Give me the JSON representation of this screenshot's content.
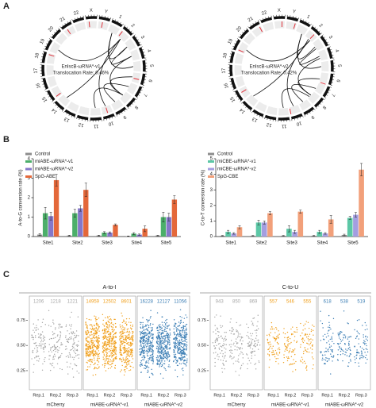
{
  "panel_labels": [
    "A",
    "B",
    "C"
  ],
  "circos": {
    "chromosomes": [
      "X",
      "Y",
      "1",
      "2",
      "3",
      "4",
      "5",
      "6",
      "7",
      "8",
      "9",
      "10",
      "11",
      "12",
      "13",
      "14",
      "15",
      "16",
      "17",
      "18",
      "19",
      "20",
      "21",
      "22"
    ],
    "plots": [
      {
        "annotation": "EnIscB-ωRNA*-v1",
        "rate": "Translocation Rate: 0.46%"
      },
      {
        "annotation": "EnIscB-ωRNA*-v2",
        "rate": "Translocation Rate: 0.42%"
      }
    ]
  },
  "chart_data": [
    {
      "type": "bar",
      "ylabel": "A-to-G conversion rate (%)",
      "categories": [
        "Site1",
        "Site2",
        "Site3",
        "Site4",
        "Site5"
      ],
      "ylim": [
        0,
        4
      ],
      "yticks": [
        0,
        1,
        2,
        3,
        4
      ],
      "series": [
        {
          "name": "Control",
          "color": "#8c8c8c",
          "values": [
            0.1,
            0.05,
            0.05,
            0.02,
            0.05
          ],
          "errors": [
            0.05,
            0.02,
            0.02,
            0.01,
            0.02
          ]
        },
        {
          "name": "miABE-ωRNA*-v1",
          "color": "#4caf6a",
          "values": [
            1.2,
            1.2,
            0.2,
            0.15,
            1.0
          ],
          "errors": [
            0.3,
            0.2,
            0.05,
            0.05,
            0.25
          ]
        },
        {
          "name": "miABE-ωRNA*-v2",
          "color": "#8577c9",
          "values": [
            1.05,
            1.45,
            0.2,
            0.1,
            1.0
          ],
          "errors": [
            0.2,
            0.15,
            0.04,
            0.03,
            0.2
          ]
        },
        {
          "name": "SpG-ABE",
          "color": "#e4683a",
          "values": [
            2.9,
            2.4,
            0.6,
            0.4,
            1.9
          ],
          "errors": [
            0.3,
            0.35,
            0.05,
            0.15,
            0.2
          ]
        }
      ]
    },
    {
      "type": "bar",
      "ylabel": "C-to-T conversion rate (%)",
      "categories": [
        "Site1",
        "Site2",
        "Site3",
        "Site4",
        "Site5"
      ],
      "ylim": [
        0,
        5
      ],
      "yticks": [
        0,
        1,
        2,
        3,
        4,
        5
      ],
      "series": [
        {
          "name": "Control",
          "color": "#8c8c8c",
          "values": [
            0.05,
            0.05,
            0.05,
            0.05,
            0.1
          ],
          "errors": [
            0.02,
            0.02,
            0.02,
            0.02,
            0.05
          ]
        },
        {
          "name": "miCBE-ωRNA*-v1",
          "color": "#5cc7a6",
          "values": [
            0.3,
            0.9,
            0.5,
            0.3,
            1.2
          ],
          "errors": [
            0.1,
            0.15,
            0.2,
            0.1,
            0.1
          ]
        },
        {
          "name": "miCBE-ωRNA*-v2",
          "color": "#a49ee0",
          "values": [
            0.2,
            0.9,
            0.3,
            0.2,
            1.4
          ],
          "errors": [
            0.05,
            0.1,
            0.1,
            0.05,
            0.15
          ]
        },
        {
          "name": "SpG-CBE",
          "color": "#f2a07a",
          "values": [
            0.6,
            1.5,
            1.6,
            1.1,
            4.3
          ],
          "errors": [
            0.1,
            0.1,
            0.1,
            0.25,
            0.4
          ]
        }
      ]
    },
    {
      "type": "strip",
      "title": "A-to-I",
      "ylim": [
        0.1,
        0.95
      ],
      "yticks": [
        {
          "value": 0.25,
          "label": "0.25"
        },
        {
          "value": 0.5,
          "label": "0.50"
        },
        {
          "value": 0.75,
          "label": "0.75"
        }
      ],
      "groups": [
        {
          "name": "mCherry",
          "color": "#a6a6a6",
          "reps": [
            "Rep.1",
            "Rep.2",
            "Rep.3"
          ],
          "counts": [
            1206,
            1218,
            1221
          ]
        },
        {
          "name": "miABE-ωRNA*-v1",
          "color": "#f0a01e",
          "reps": [
            "Rep.1",
            "Rep.2",
            "Rep.3"
          ],
          "counts": [
            14959,
            12502,
            8601
          ]
        },
        {
          "name": "miABE-ωRNA*-v2",
          "color": "#3d7fb5",
          "reps": [
            "Rep.1",
            "Rep.2",
            "Rep.3"
          ],
          "counts": [
            16228,
            12127,
            11056
          ]
        }
      ]
    },
    {
      "type": "strip",
      "title": "C-to-U",
      "ylim": [
        0.1,
        0.95
      ],
      "yticks": [
        {
          "value": 0.25,
          "label": "0.25"
        },
        {
          "value": 0.5,
          "label": "0.50"
        },
        {
          "value": 0.75,
          "label": "0.75"
        }
      ],
      "groups": [
        {
          "name": "mCherry",
          "color": "#a6a6a6",
          "reps": [
            "Rep.1",
            "Rep.2",
            "Rep.3"
          ],
          "counts": [
            943,
            850,
            869
          ]
        },
        {
          "name": "miABE-ωRNA*-v1",
          "color": "#f0a01e",
          "reps": [
            "Rep.1",
            "Rep.2",
            "Rep.3"
          ],
          "counts": [
            557,
            546,
            555
          ]
        },
        {
          "name": "miABE-ωRNA*-v2",
          "color": "#3d7fb5",
          "reps": [
            "Rep.1",
            "Rep.2",
            "Rep.3"
          ],
          "counts": [
            618,
            538,
            519
          ]
        }
      ]
    }
  ]
}
